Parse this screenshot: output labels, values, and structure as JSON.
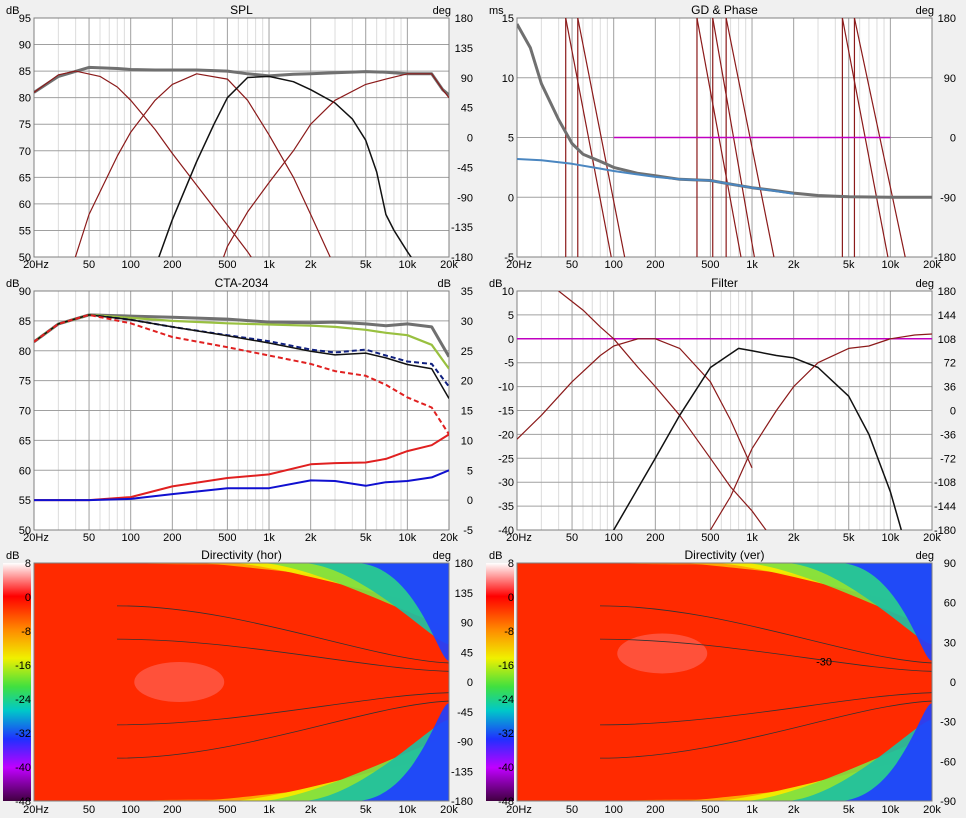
{
  "colors": {
    "grid_major": "#a0a0a0",
    "grid_minor": "#dcdcdc",
    "plot_bg": "#ffffff",
    "trace_grey": "#707070",
    "trace_darkred": "#8b1a1a",
    "trace_black": "#111111",
    "trace_red": "#e02020",
    "trace_blue": "#1010d0",
    "trace_green": "#99c040",
    "trace_magenta": "#c000c0",
    "trace_steel": "#4a86c0"
  },
  "freq_ticks": [
    "20Hz",
    "50",
    "100",
    "200",
    "500",
    "1k",
    "2k",
    "5k",
    "10k",
    "20k"
  ],
  "charts": {
    "spl": {
      "title": "SPL",
      "left_unit": "dB",
      "right_unit": "deg",
      "left_ticks": [
        "95",
        "90",
        "85",
        "80",
        "75",
        "70",
        "65",
        "60",
        "55",
        "50"
      ],
      "right_ticks": [
        "180",
        "135",
        "90",
        "45",
        "0",
        "-45",
        "-90",
        "-135",
        "-180"
      ]
    },
    "gd": {
      "title": "GD & Phase",
      "left_unit": "ms",
      "right_unit": "deg",
      "left_ticks": [
        "15",
        "10",
        "5",
        "0",
        "-5"
      ],
      "right_ticks": [
        "180",
        "90",
        "0",
        "-90",
        "-180"
      ]
    },
    "cta": {
      "title": "CTA-2034",
      "left_unit": "dB",
      "right_unit": "dB",
      "left_ticks": [
        "90",
        "85",
        "80",
        "75",
        "70",
        "65",
        "60",
        "55",
        "50"
      ],
      "right_ticks": [
        "35",
        "30",
        "25",
        "20",
        "15",
        "10",
        "5",
        "0",
        "-5"
      ]
    },
    "filter": {
      "title": "Filter",
      "left_unit": "dB",
      "right_unit": "deg",
      "left_ticks": [
        "10",
        "5",
        "0",
        "-5",
        "-10",
        "-15",
        "-20",
        "-25",
        "-30",
        "-35",
        "-40"
      ],
      "right_ticks": [
        "180",
        "144",
        "108",
        "72",
        "36",
        "0",
        "-36",
        "-72",
        "-108",
        "-144",
        "-180"
      ]
    },
    "dir_hor": {
      "title": "Directivity (hor)",
      "left_unit": "dB",
      "right_unit": "deg",
      "scale_ticks": [
        "8",
        "0",
        "-8",
        "-16",
        "-24",
        "-32",
        "-40",
        "-48"
      ],
      "right_ticks": [
        "180",
        "135",
        "90",
        "45",
        "0",
        "-45",
        "-90",
        "-135",
        "-180"
      ]
    },
    "dir_ver": {
      "title": "Directivity (ver)",
      "left_unit": "dB",
      "right_unit": "deg",
      "scale_ticks": [
        "8",
        "0",
        "-8",
        "-16",
        "-24",
        "-32",
        "-40",
        "-48"
      ],
      "right_ticks": [
        "90",
        "60",
        "30",
        "0",
        "-30",
        "-60",
        "-90"
      ],
      "contour_label": "-30"
    }
  },
  "chart_data": [
    {
      "type": "line",
      "title": "SPL",
      "xscale": "log",
      "xlim": [
        20,
        20000
      ],
      "ylabel": "dB",
      "ylim": [
        50,
        95
      ],
      "y2label": "deg",
      "y2lim": [
        -180,
        180
      ],
      "grid": true,
      "series": [
        {
          "color": "grey",
          "x": [
            20,
            30,
            50,
            80,
            100,
            150,
            200,
            300,
            500,
            700,
            1000,
            1500,
            2000,
            3000,
            5000,
            7000,
            10000,
            15000,
            18000,
            20000
          ],
          "y": [
            81,
            84,
            85.7,
            85.5,
            85.3,
            85.2,
            85.2,
            85.2,
            85,
            84.5,
            84.1,
            84.4,
            84.5,
            84.7,
            84.9,
            84.8,
            84.5,
            84.5,
            81.5,
            80.5
          ]
        },
        {
          "color": "darkred",
          "x": [
            20,
            30,
            40,
            60,
            80,
            100,
            150,
            200,
            300,
            500,
            700,
            1000,
            1500,
            2000
          ],
          "y": [
            81,
            84.3,
            85,
            84,
            82,
            79.5,
            74,
            69.5,
            63.5,
            56,
            51,
            45,
            40,
            37
          ]
        },
        {
          "color": "darkred",
          "x": [
            30,
            50,
            80,
            100,
            150,
            200,
            300,
            500,
            700,
            1000,
            1500,
            2000,
            3000
          ],
          "y": [
            40,
            58,
            69,
            73.5,
            79.5,
            82.5,
            84.5,
            83.5,
            79.5,
            73,
            65,
            58,
            48
          ]
        },
        {
          "color": "black",
          "x": [
            150,
            200,
            300,
            400,
            500,
            700,
            1000,
            1500,
            2000,
            3000,
            4000,
            5000,
            6000,
            7000,
            8000,
            10000,
            12000,
            15000
          ],
          "y": [
            48,
            57,
            68,
            75,
            80,
            83.8,
            84,
            83,
            81.5,
            79,
            76,
            72,
            66,
            58,
            55,
            51,
            48,
            44
          ]
        },
        {
          "color": "darkred",
          "x": [
            400,
            500,
            700,
            1000,
            1500,
            2000,
            3000,
            5000,
            7000,
            10000,
            15000,
            18000,
            20000
          ],
          "y": [
            45,
            52,
            58.5,
            64,
            70,
            75,
            79.5,
            82.5,
            83.5,
            84.5,
            84.5,
            81.5,
            80
          ]
        }
      ]
    },
    {
      "type": "line",
      "title": "GD & Phase",
      "xscale": "log",
      "xlim": [
        20,
        20000
      ],
      "ylabel": "ms",
      "ylim": [
        -5,
        15
      ],
      "y2label": "deg",
      "y2lim": [
        -180,
        180
      ],
      "grid": true,
      "series": [
        {
          "color": "grey",
          "x": [
            20,
            25,
            30,
            40,
            50,
            60,
            80,
            100,
            150,
            200,
            300,
            500,
            700,
            1000,
            1500,
            2000,
            3000,
            5000,
            10000,
            20000
          ],
          "y": [
            14.5,
            12.5,
            9.5,
            6.5,
            4.5,
            3.6,
            3,
            2.5,
            2,
            1.8,
            1.5,
            1.4,
            1.1,
            0.8,
            0.55,
            0.35,
            0.15,
            0.05,
            0,
            0
          ]
        },
        {
          "color": "steel",
          "x": [
            20,
            30,
            50,
            80,
            100,
            150,
            200,
            300,
            500,
            700,
            1000,
            2000
          ],
          "y": [
            3.2,
            3.1,
            2.8,
            2.4,
            2.2,
            1.9,
            1.7,
            1.5,
            1.4,
            1.1,
            0.8,
            0.3
          ]
        },
        {
          "color": "magenta",
          "x": [
            100,
            10000
          ],
          "y": [
            5,
            5
          ]
        }
      ]
    },
    {
      "type": "line",
      "title": "CTA-2034",
      "xscale": "log",
      "xlim": [
        20,
        20000
      ],
      "ylabel": "dB",
      "ylim": [
        50,
        90
      ],
      "y2label": "dB",
      "y2lim": [
        -5,
        35
      ],
      "grid": true,
      "series": [
        {
          "color": "grey",
          "x": [
            20,
            30,
            50,
            100,
            200,
            500,
            1000,
            2000,
            3000,
            5000,
            7000,
            10000,
            15000,
            20000
          ],
          "y": [
            81.5,
            84.5,
            86,
            85.8,
            85.6,
            85.3,
            84.8,
            84.7,
            84.8,
            84.5,
            84.2,
            84.5,
            84,
            79
          ]
        },
        {
          "color": "green",
          "x": [
            20,
            30,
            50,
            100,
            200,
            500,
            1000,
            2000,
            3000,
            5000,
            7000,
            10000,
            15000,
            20000
          ],
          "y": [
            81.5,
            84.5,
            86,
            85.5,
            85,
            84.6,
            84.4,
            84.2,
            84,
            83.5,
            83,
            82.6,
            81,
            77
          ]
        },
        {
          "color": "navy-dashed",
          "x": [
            20,
            30,
            50,
            100,
            200,
            500,
            1000,
            2000,
            3000,
            5000,
            7000,
            10000,
            15000,
            20000
          ],
          "y": [
            81.5,
            84.5,
            86,
            85.2,
            84,
            82.6,
            81.6,
            80.2,
            79.7,
            80.2,
            79.2,
            78.2,
            77.8,
            74
          ]
        },
        {
          "color": "black",
          "x": [
            20,
            30,
            50,
            100,
            200,
            500,
            1000,
            2000,
            3000,
            5000,
            7000,
            10000,
            15000,
            20000
          ],
          "y": [
            81.5,
            84.5,
            86,
            85.2,
            84,
            82.5,
            81.3,
            79.9,
            79.3,
            79.6,
            78.8,
            77.7,
            77,
            72
          ]
        },
        {
          "color": "red-dashed",
          "x": [
            20,
            30,
            50,
            100,
            200,
            500,
            1000,
            2000,
            3000,
            5000,
            7000,
            10000,
            15000,
            20000
          ],
          "y": [
            81.5,
            84.5,
            86,
            84.6,
            82.3,
            80.6,
            79.2,
            77.8,
            76.6,
            75.8,
            74.3,
            72.2,
            70.5,
            66
          ]
        },
        {
          "color": "red",
          "x": [
            20,
            50,
            100,
            200,
            500,
            1000,
            2000,
            3000,
            5000,
            7000,
            10000,
            15000,
            20000
          ],
          "y": [
            0,
            0,
            0.5,
            2.3,
            3.7,
            4.3,
            6,
            6.2,
            6.3,
            6.9,
            8.2,
            9.2,
            11
          ]
        },
        {
          "color": "blue",
          "x": [
            20,
            50,
            100,
            200,
            500,
            1000,
            2000,
            3000,
            5000,
            7000,
            10000,
            15000,
            20000
          ],
          "y": [
            0,
            0,
            0.2,
            1,
            2,
            2,
            3.3,
            3.2,
            2.4,
            3,
            3.2,
            3.8,
            5
          ]
        }
      ]
    },
    {
      "type": "line",
      "title": "Filter",
      "xscale": "log",
      "xlim": [
        20,
        20000
      ],
      "ylabel": "dB",
      "ylim": [
        -40,
        10
      ],
      "y2label": "deg",
      "y2lim": [
        -180,
        180
      ],
      "grid": true,
      "series": [
        {
          "color": "magenta",
          "x": [
            20,
            20000
          ],
          "y": [
            0,
            0
          ]
        },
        {
          "color": "darkred",
          "x": [
            40,
            60,
            80,
            100,
            150,
            200,
            300,
            500,
            700,
            1000,
            1500
          ],
          "y": [
            10,
            6,
            2.5,
            0,
            -6,
            -10,
            -16,
            -25,
            -31,
            -36,
            -43
          ]
        },
        {
          "color": "darkred",
          "x": [
            20,
            30,
            50,
            80,
            100,
            150,
            200,
            300,
            500,
            700,
            1000
          ],
          "y": [
            -21,
            -16,
            -9,
            -3.5,
            -1.5,
            0,
            0,
            -2,
            -9,
            -17,
            -27
          ]
        },
        {
          "color": "black",
          "x": [
            60,
            100,
            200,
            300,
            500,
            800,
            1000,
            1500,
            2000,
            3000,
            5000,
            7000,
            10000,
            12000
          ],
          "y": [
            -48,
            -40,
            -25,
            -16,
            -6,
            -2,
            -2.5,
            -3.5,
            -4,
            -6,
            -12,
            -20,
            -32,
            -40
          ]
        },
        {
          "color": "darkred",
          "x": [
            500,
            700,
            1000,
            1500,
            2000,
            3000,
            5000,
            7000,
            10000,
            15000,
            20000
          ],
          "y": [
            -40,
            -33,
            -23,
            -15,
            -10,
            -5,
            -2,
            -1.5,
            0,
            0.8,
            1
          ]
        }
      ]
    }
  ]
}
